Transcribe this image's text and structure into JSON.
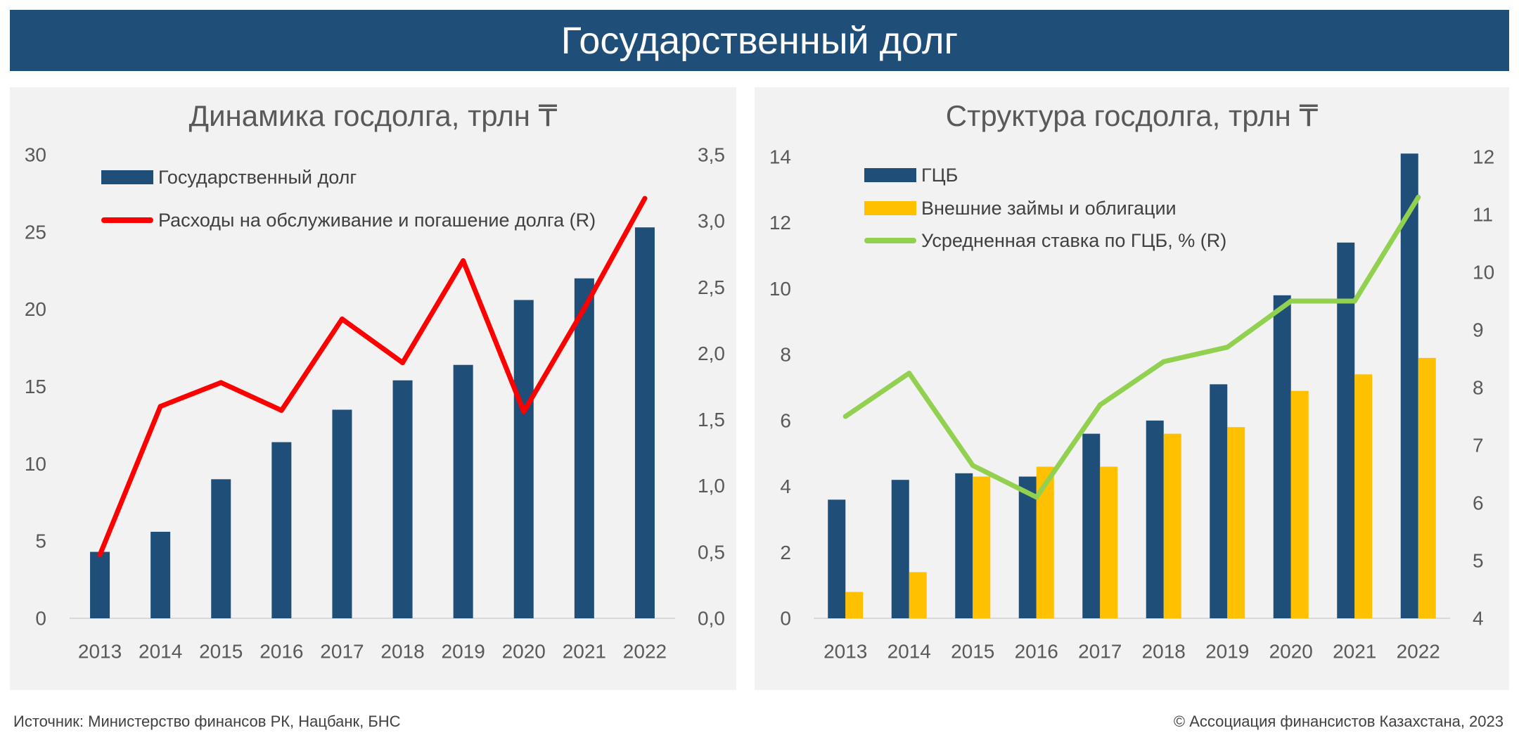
{
  "header": {
    "title": "Государственный долг"
  },
  "colors": {
    "header_background": "#1f4e79",
    "header_text": "#ffffff",
    "panel_background": "#f2f2f2",
    "text": "#595959",
    "axis_line": "#d9d9d9"
  },
  "chart_data": [
    {
      "type": "bar",
      "title": "Динамика госдолга, трлн ₸",
      "categories": [
        "2013",
        "2014",
        "2015",
        "2016",
        "2017",
        "2018",
        "2019",
        "2020",
        "2021",
        "2022"
      ],
      "series": [
        {
          "name": "Государственный долг",
          "kind": "bar",
          "axis": "left",
          "color": "#1f4e79",
          "values": [
            4.3,
            5.6,
            9.0,
            11.4,
            13.5,
            15.4,
            16.4,
            20.6,
            22.0,
            25.3
          ]
        },
        {
          "name": "Расходы на обслуживание и погашение долга (R)",
          "kind": "line",
          "axis": "right",
          "color": "#ff0000",
          "values": [
            0.48,
            1.6,
            1.78,
            1.57,
            2.26,
            1.93,
            2.7,
            1.56,
            2.34,
            3.17
          ]
        }
      ],
      "y_left": {
        "range": [
          0,
          30
        ],
        "tick_values": [
          0,
          5,
          10,
          15,
          20,
          25,
          30
        ],
        "tick_labels": [
          "0",
          "5",
          "10",
          "15",
          "20",
          "25",
          "30"
        ]
      },
      "y_right": {
        "range": [
          0,
          3.5
        ],
        "tick_values": [
          0,
          0.5,
          1,
          1.5,
          2,
          2.5,
          3,
          3.5
        ],
        "tick_labels": [
          "0,0",
          "0,5",
          "1,0",
          "1,5",
          "2,0",
          "2,5",
          "3,0",
          "3,5"
        ]
      },
      "legend": "top-left",
      "grid": false
    },
    {
      "type": "bar",
      "title": "Структура госдолга, трлн ₸",
      "categories": [
        "2013",
        "2014",
        "2015",
        "2016",
        "2017",
        "2018",
        "2019",
        "2020",
        "2021",
        "2022"
      ],
      "series": [
        {
          "name": "ГЦБ",
          "kind": "bar",
          "axis": "left",
          "color": "#1f4e79",
          "values": [
            3.6,
            4.2,
            4.4,
            4.3,
            5.6,
            6.0,
            7.1,
            9.8,
            11.4,
            14.1
          ]
        },
        {
          "name": "Внешние займы и облигации",
          "kind": "bar",
          "axis": "left",
          "color": "#ffc000",
          "values": [
            0.8,
            1.4,
            4.3,
            4.6,
            4.6,
            5.6,
            5.8,
            6.9,
            7.4,
            7.9
          ]
        },
        {
          "name": "Усредненная ставка по ГЦБ, % (R)",
          "kind": "line",
          "axis": "right",
          "color": "#92d050",
          "values": [
            7.5,
            8.25,
            6.65,
            6.1,
            7.7,
            8.45,
            8.7,
            9.5,
            9.5,
            11.3
          ]
        }
      ],
      "y_left": {
        "range": [
          0,
          14
        ],
        "tick_values": [
          0,
          2,
          4,
          6,
          8,
          10,
          12,
          14
        ],
        "tick_labels": [
          "0",
          "2",
          "4",
          "6",
          "8",
          "10",
          "12",
          "14"
        ]
      },
      "y_right": {
        "range": [
          4,
          12
        ],
        "tick_values": [
          4,
          5,
          6,
          7,
          8,
          9,
          10,
          11,
          12
        ],
        "tick_labels": [
          "4",
          "5",
          "6",
          "7",
          "8",
          "9",
          "10",
          "11",
          "12"
        ]
      },
      "legend": "top-left",
      "grid": false
    }
  ],
  "footer": {
    "source": "Источник: Министерство финансов РК, Нацбанк, БНС",
    "copyright": "© Ассоциация финансистов Казахстана, 2023"
  }
}
